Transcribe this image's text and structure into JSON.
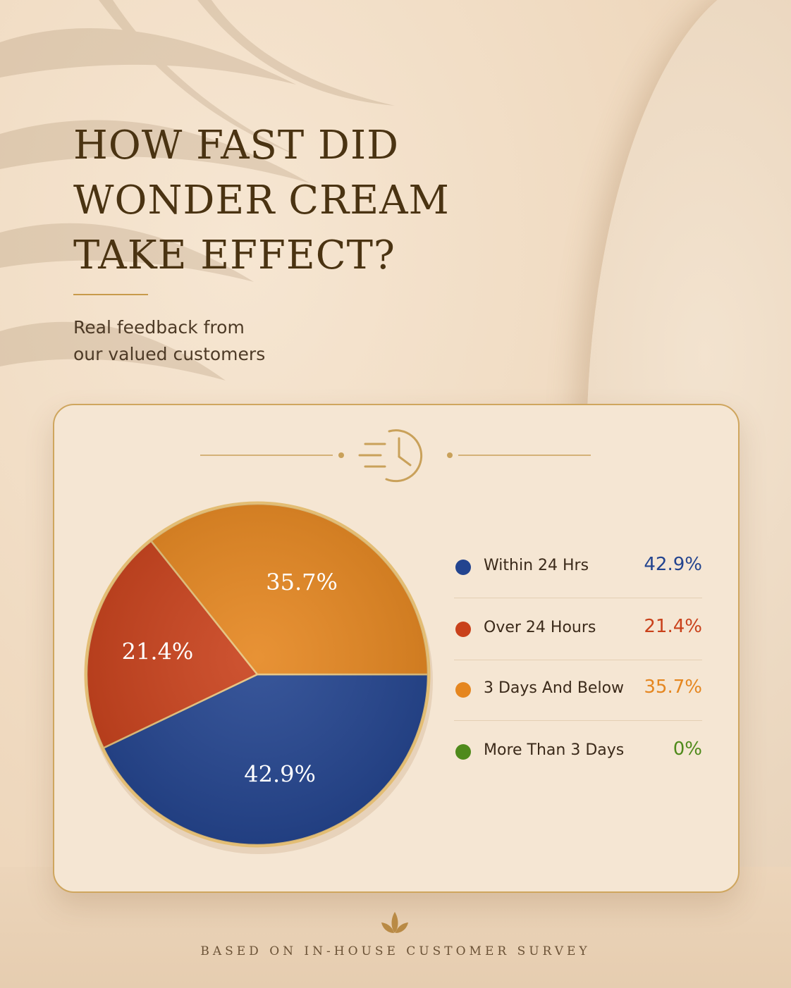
{
  "header": {
    "title_lines": [
      "HOW FAST DID",
      "WONDER CREAM",
      "TAKE EFFECT?"
    ],
    "subtitle_lines": [
      "Real feedback from",
      "our valued customers"
    ]
  },
  "card": {
    "icon": "clock-speed-icon"
  },
  "chart_data": {
    "type": "pie",
    "title": "HOW FAST DID WONDER CREAM TAKE EFFECT?",
    "subtitle": "Real feedback from our valued customers",
    "categories": [
      "Within 24 Hrs",
      "Over 24 Hours",
      "3 Days And Below",
      "More Than 3 Days"
    ],
    "values": [
      42.9,
      21.4,
      35.7,
      0
    ],
    "labels": [
      "42.9%",
      "21.4%",
      "35.7%",
      "0%"
    ],
    "colors": [
      "#23448f",
      "#c9411b",
      "#e5861f",
      "#4f8a1b"
    ],
    "legend_position": "right"
  },
  "footer": {
    "note": "BASED ON IN-HOUSE CUSTOMER SURVEY",
    "icon": "sprout-icon"
  }
}
